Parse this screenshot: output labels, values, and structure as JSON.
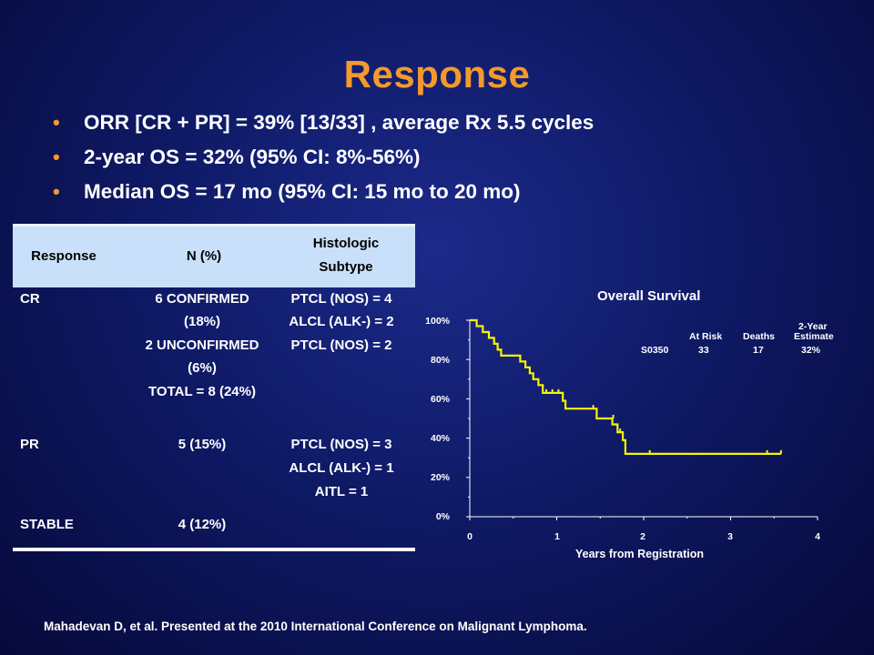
{
  "slide": {
    "title": "Response",
    "bullets": [
      "ORR [CR + PR] = 39% [13/33] , average Rx 5.5 cycles",
      "2-year OS = 32% (95% CI: 8%-56%)",
      "Median OS = 17 mo (95% CI: 15 mo to 20 mo)"
    ],
    "footer": "Mahadevan D, et al. Presented at the 2010 International Conference on Malignant Lymphoma."
  },
  "table": {
    "headers": [
      "Response",
      "N (%)",
      "Histologic",
      "Subtype"
    ],
    "rows": [
      {
        "response": "CR",
        "n_lines": [
          "6 CONFIRMED",
          "(18%)",
          "2 UNCONFIRMED",
          "(6%)",
          "TOTAL = 8 (24%)"
        ],
        "subtype_lines": [
          "PTCL (NOS) = 4",
          "ALCL (ALK-) = 2",
          "PTCL (NOS) = 2"
        ]
      },
      {
        "response": "PR",
        "n_lines": [
          "5 (15%)"
        ],
        "subtype_lines": [
          "PTCL (NOS) = 3",
          "ALCL (ALK-) = 1",
          "AITL = 1"
        ]
      },
      {
        "response": "STABLE",
        "n_lines": [
          "4 (12%)"
        ],
        "subtype_lines": []
      }
    ]
  },
  "chart_data": {
    "type": "line",
    "title": "Overall Survival",
    "xlabel": "Years from Registration",
    "ylabel": "",
    "xlim": [
      0,
      4
    ],
    "ylim": [
      0,
      100
    ],
    "x_ticks": [
      "0",
      "1",
      "2",
      "3",
      "4"
    ],
    "y_ticks": [
      "0%",
      "20%",
      "40%",
      "60%",
      "80%",
      "100%"
    ],
    "series_color": "#f5f500",
    "series": [
      {
        "name": "S0350",
        "step_points": [
          [
            0,
            100
          ],
          [
            0.08,
            100
          ],
          [
            0.08,
            97
          ],
          [
            0.15,
            97
          ],
          [
            0.15,
            94
          ],
          [
            0.22,
            94
          ],
          [
            0.22,
            91
          ],
          [
            0.28,
            91
          ],
          [
            0.28,
            88
          ],
          [
            0.32,
            88
          ],
          [
            0.32,
            85
          ],
          [
            0.36,
            85
          ],
          [
            0.36,
            82
          ],
          [
            0.58,
            82
          ],
          [
            0.58,
            79
          ],
          [
            0.64,
            79
          ],
          [
            0.64,
            76
          ],
          [
            0.69,
            76
          ],
          [
            0.69,
            73
          ],
          [
            0.73,
            73
          ],
          [
            0.73,
            70
          ],
          [
            0.79,
            70
          ],
          [
            0.79,
            67
          ],
          [
            0.84,
            67
          ],
          [
            0.84,
            63
          ],
          [
            1.07,
            63
          ],
          [
            1.07,
            59
          ],
          [
            1.1,
            59
          ],
          [
            1.1,
            55
          ],
          [
            1.46,
            55
          ],
          [
            1.46,
            50
          ],
          [
            1.64,
            50
          ],
          [
            1.64,
            47
          ],
          [
            1.7,
            47
          ],
          [
            1.7,
            43
          ],
          [
            1.76,
            43
          ],
          [
            1.76,
            39
          ],
          [
            1.79,
            39
          ],
          [
            1.79,
            32
          ],
          [
            3.58,
            32
          ]
        ],
        "censor_points": [
          [
            0.88,
            63
          ],
          [
            0.95,
            63
          ],
          [
            1.02,
            63
          ],
          [
            1.42,
            55
          ],
          [
            1.65,
            50
          ],
          [
            1.73,
            43
          ],
          [
            2.07,
            32
          ],
          [
            3.42,
            32
          ],
          [
            3.58,
            32
          ]
        ]
      }
    ],
    "legend": {
      "headers": [
        "At Risk",
        "Deaths",
        "2-Year",
        "Estimate"
      ],
      "row": {
        "label": "S0350",
        "at_risk": "33",
        "deaths": "17",
        "estimate": "32%"
      }
    }
  }
}
